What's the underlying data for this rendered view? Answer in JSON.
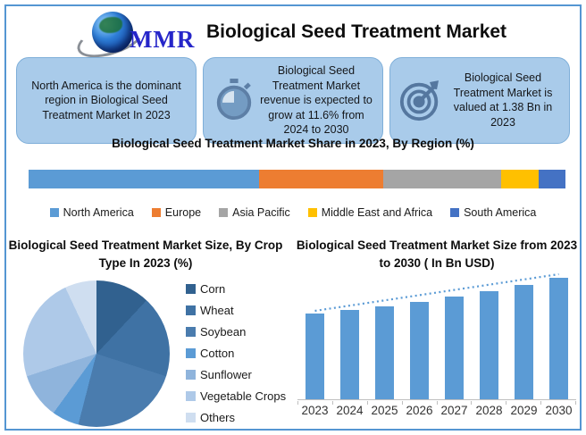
{
  "header": {
    "logo_text": "MMR",
    "title": "Biological Seed Treatment Market"
  },
  "info_cards": [
    {
      "icon": "none",
      "text": "North America is the dominant region in Biological Seed Treatment Market In 2023"
    },
    {
      "icon": "stopwatch-icon",
      "text": "Biological Seed Treatment Market revenue is expected to grow at 11.6% from 2024 to 2030"
    },
    {
      "icon": "target-icon",
      "text": "Biological Seed Treatment Market is valued at 1.38 Bn in 2023"
    }
  ],
  "chart_data": [
    {
      "type": "bar",
      "variant": "stacked-horizontal",
      "title": "Biological Seed Treatment Market Share in 2023, By Region (%)",
      "categories": [
        "North America",
        "Europe",
        "Asia Pacific",
        "Middle East and Africa",
        "South America"
      ],
      "values": [
        43,
        23,
        22,
        7,
        5
      ],
      "colors": [
        "#5b9bd5",
        "#ed7d31",
        "#a5a5a5",
        "#ffc000",
        "#4472c4"
      ],
      "legend_position": "bottom"
    },
    {
      "type": "pie",
      "title": "Biological Seed Treatment Market Size, By Crop Type In 2023 (%)",
      "labels": [
        "Corn",
        "Wheat",
        "Soybean",
        "Cotton",
        "Sunflower",
        "Vegetable Crops",
        "Others"
      ],
      "values": [
        12,
        18,
        24,
        6,
        10,
        23,
        7
      ],
      "colors": [
        "#31618f",
        "#3f72a4",
        "#4a7cae",
        "#5b9bd5",
        "#8fb4dc",
        "#aec9e8",
        "#cfdef0"
      ],
      "legend_position": "right",
      "start_angle_deg": 0
    },
    {
      "type": "bar",
      "title": "Biological Seed Treatment Market Size from 2023 to 2030 ( In Bn USD)",
      "categories": [
        "2023",
        "2024",
        "2025",
        "2026",
        "2027",
        "2028",
        "2029",
        "2030"
      ],
      "values": [
        1.38,
        1.54,
        1.72,
        1.92,
        2.14,
        2.39,
        2.67,
        2.98
      ],
      "bar_color": "#5b9bd5",
      "trendline": {
        "style": "dotted",
        "color": "#5b9bd5"
      },
      "y_axis_labels_visible": false,
      "grid": false
    }
  ],
  "colors": {
    "frame_border": "#5596d2",
    "card_bg": "#a9cbea",
    "icon_blue": "#55779f"
  }
}
